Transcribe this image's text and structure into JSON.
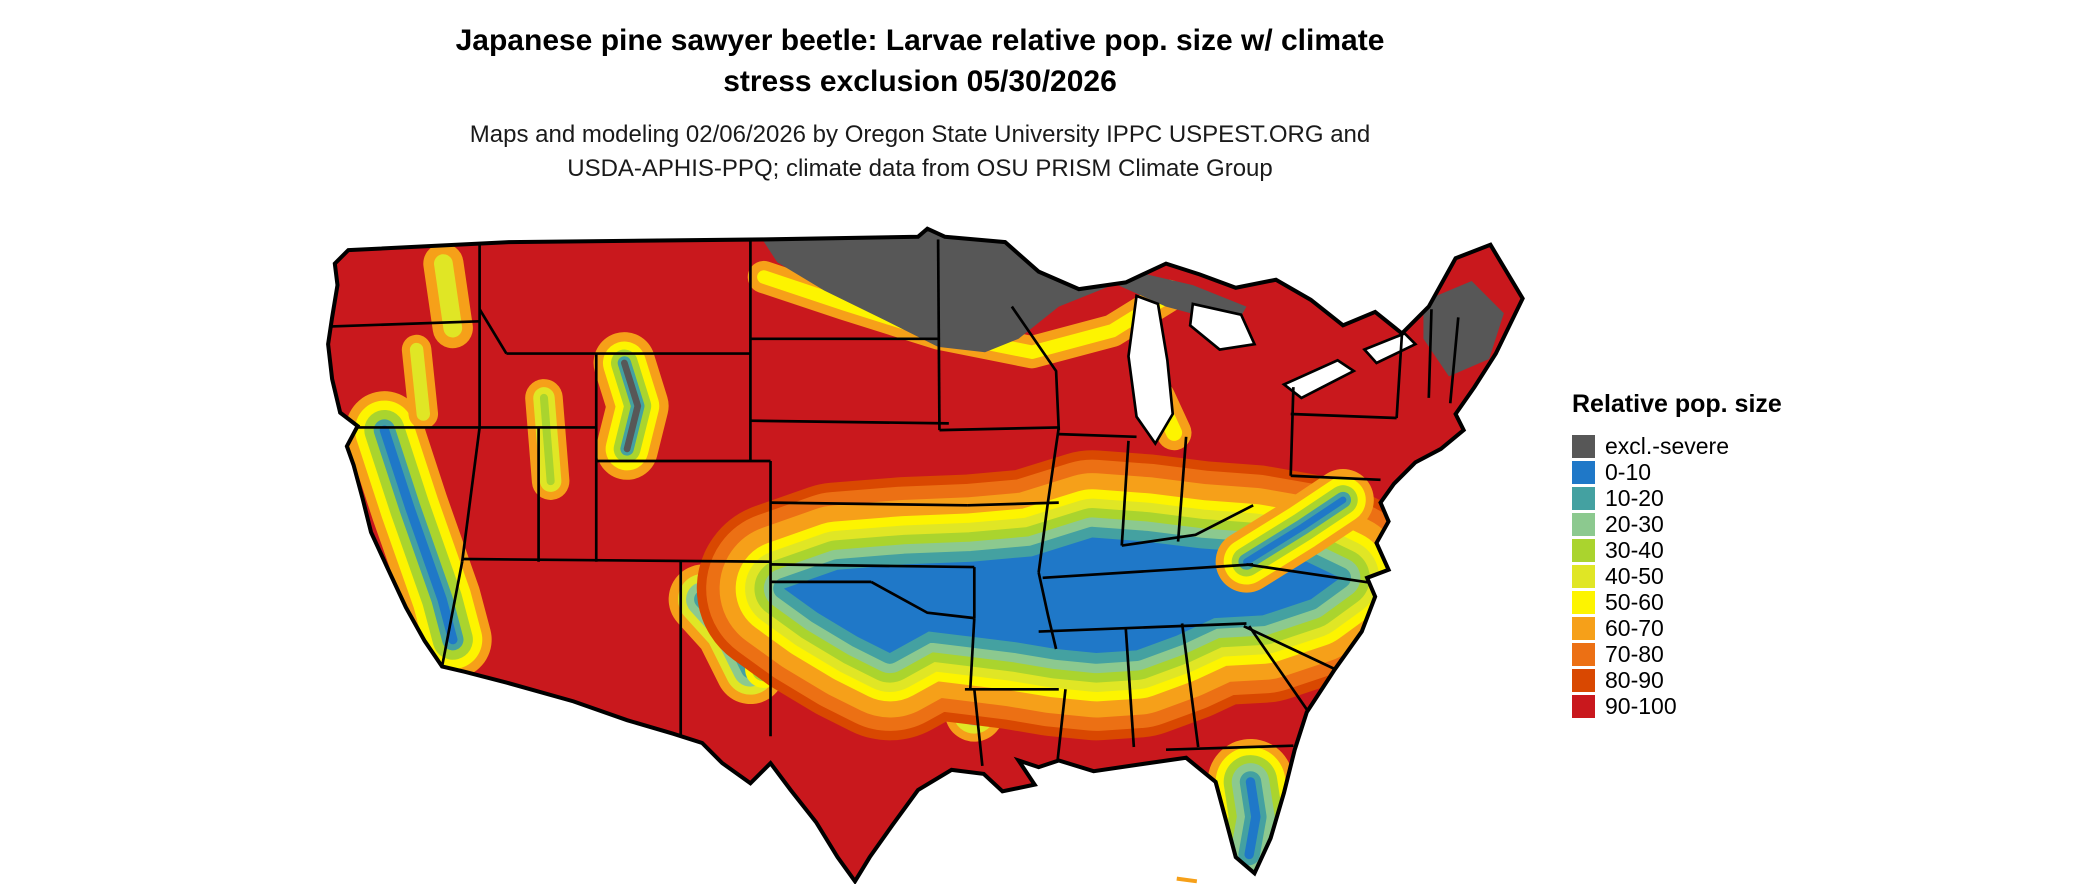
{
  "page": {
    "background": "#ffffff"
  },
  "title": {
    "line1": "Japanese pine sawyer beetle: Larvae relative pop. size w/ climate",
    "line2": "stress exclusion 05/30/2026"
  },
  "subtitle": {
    "line1": "Maps and modeling 02/06/2026 by Oregon State University IPPC USPEST.ORG and",
    "line2": "USDA-APHIS-PPQ; climate data from OSU PRISM Climate Group"
  },
  "map": {
    "region": "Contiguous United States",
    "type": "raster choropleth",
    "excluded_gray_areas": [
      "northern Minnesota and adjacent North Dakota",
      "upper Michigan",
      "northern Maine",
      "Colorado Rockies"
    ],
    "low_value_blue_band": "south-central Plains (Oklahoma / north Texas) through Arkansas, Tennessee Valley and Southeast interior to the Carolinas",
    "high_value_red_areas": "most of the North, West, Gulf Coast, south Texas and Florida panhandle"
  },
  "legend": {
    "title": "Relative pop. size",
    "items": [
      {
        "label": "excl.-severe",
        "color": "#575757"
      },
      {
        "label": "0-10",
        "color": "#1f78c8"
      },
      {
        "label": "10-20",
        "color": "#44a1a1"
      },
      {
        "label": "20-30",
        "color": "#8cc98f"
      },
      {
        "label": "30-40",
        "color": "#aad42e"
      },
      {
        "label": "40-50",
        "color": "#e0e625"
      },
      {
        "label": "50-60",
        "color": "#fdf400"
      },
      {
        "label": "60-70",
        "color": "#f6a019"
      },
      {
        "label": "70-80",
        "color": "#ec7014"
      },
      {
        "label": "80-90",
        "color": "#d94801"
      },
      {
        "label": "90-100",
        "color": "#c9181d"
      }
    ]
  }
}
